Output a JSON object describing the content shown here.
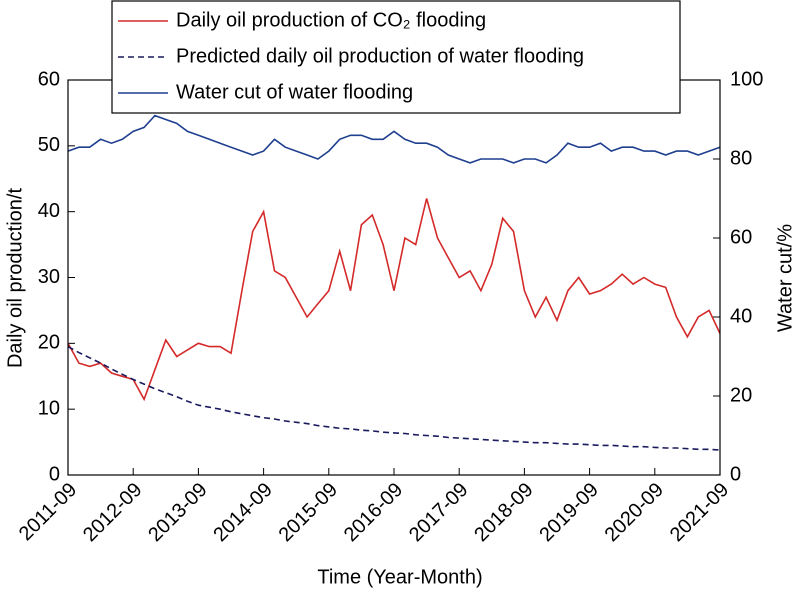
{
  "chart_data": {
    "type": "line",
    "x": [
      "2011-09",
      "2011-11",
      "2012-01",
      "2012-03",
      "2012-05",
      "2012-07",
      "2012-09",
      "2012-11",
      "2013-01",
      "2013-03",
      "2013-05",
      "2013-07",
      "2013-09",
      "2013-11",
      "2014-01",
      "2014-03",
      "2014-05",
      "2014-07",
      "2014-09",
      "2014-11",
      "2015-01",
      "2015-03",
      "2015-05",
      "2015-07",
      "2015-09",
      "2015-11",
      "2016-01",
      "2016-03",
      "2016-05",
      "2016-07",
      "2016-09",
      "2016-11",
      "2017-01",
      "2017-03",
      "2017-05",
      "2017-07",
      "2017-09",
      "2017-11",
      "2018-01",
      "2018-03",
      "2018-05",
      "2018-07",
      "2018-09",
      "2018-11",
      "2019-01",
      "2019-03",
      "2019-05",
      "2019-07",
      "2019-09",
      "2019-11",
      "2020-01",
      "2020-03",
      "2020-05",
      "2020-07",
      "2020-09",
      "2020-11",
      "2021-01",
      "2021-03",
      "2021-05",
      "2021-07",
      "2021-09"
    ],
    "series": [
      {
        "name": "Daily oil production of CO₂ flooding",
        "color": "#d42a2a",
        "style": "solid",
        "values": [
          20,
          17,
          16.5,
          17,
          15.5,
          15,
          14.5,
          11.5,
          16,
          20.5,
          18,
          19,
          20,
          19.5,
          19.5,
          18.5,
          28,
          37,
          40,
          31,
          30,
          27,
          24,
          26,
          28,
          34,
          28,
          38,
          39.5,
          35,
          28,
          36,
          35,
          42,
          36,
          33,
          30,
          31,
          28,
          32,
          39,
          37,
          28,
          24,
          27,
          23.5,
          28,
          30,
          27.5,
          28,
          29,
          30.5,
          29,
          30,
          29,
          28.5,
          24,
          21,
          24,
          25,
          21.5
        ]
      },
      {
        "name": "Predicted daily oil production of water flooding",
        "color": "#1a1a5e",
        "style": "dashed",
        "values": [
          19.5,
          18.6,
          17.8,
          17.0,
          16.1,
          15.3,
          14.5,
          13.8,
          13.1,
          12.5,
          11.9,
          11.2,
          10.6,
          10.3,
          10.0,
          9.6,
          9.3,
          9.0,
          8.7,
          8.5,
          8.2,
          8.0,
          7.8,
          7.5,
          7.3,
          7.1,
          7.0,
          6.8,
          6.7,
          6.5,
          6.4,
          6.3,
          6.1,
          6.0,
          5.9,
          5.7,
          5.6,
          5.5,
          5.4,
          5.3,
          5.2,
          5.1,
          5.0,
          4.9,
          4.9,
          4.8,
          4.7,
          4.7,
          4.6,
          4.5,
          4.5,
          4.4,
          4.3,
          4.3,
          4.2,
          4.1,
          4.1,
          4.0,
          3.9,
          3.9,
          3.8
        ]
      },
      {
        "name": "Water cut of water flooding",
        "color": "#1f3f8f",
        "style": "solid",
        "axis": "y2",
        "values": [
          82,
          83,
          83,
          85,
          84,
          85,
          87,
          88,
          91,
          90,
          89,
          87,
          86,
          85,
          84,
          83,
          82,
          81,
          82,
          85,
          83,
          82,
          81,
          80,
          82,
          85,
          86,
          86,
          85,
          85,
          87,
          85,
          84,
          84,
          83,
          81,
          80,
          79,
          80,
          80,
          80,
          79,
          80,
          80,
          79,
          81,
          84,
          83,
          83,
          84,
          82,
          83,
          83,
          82,
          82,
          81,
          82,
          82,
          81,
          82,
          83
        ]
      }
    ],
    "xlabel": "Time (Year-Month)",
    "ylabel": "Daily oil production/t",
    "y2label": "Water cut/%",
    "xlim": [
      "2011-09",
      "2021-09"
    ],
    "xticks": [
      "2011-09",
      "2012-09",
      "2013-09",
      "2014-09",
      "2015-09",
      "2016-09",
      "2017-09",
      "2018-09",
      "2019-09",
      "2020-09",
      "2021-09"
    ],
    "ylim": [
      0,
      60
    ],
    "yticks": [
      0,
      10,
      20,
      30,
      40,
      50,
      60
    ],
    "y2lim": [
      0,
      100
    ],
    "y2ticks": [
      0,
      20,
      40,
      60,
      80,
      100
    ],
    "legend": "top"
  }
}
